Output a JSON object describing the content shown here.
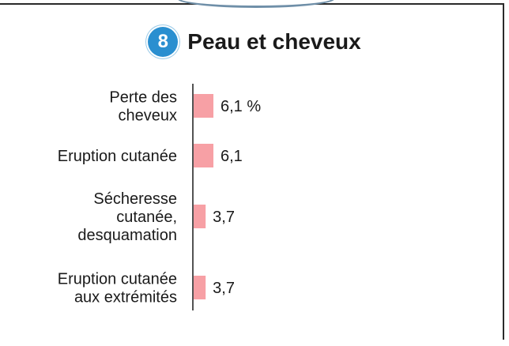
{
  "header": {
    "badge_number": "8",
    "title": "Peau et cheveux"
  },
  "chart_data": {
    "type": "bar",
    "orientation": "horizontal",
    "categories": [
      [
        "Perte des",
        "cheveux"
      ],
      [
        "Eruption cutanée"
      ],
      [
        "Sécheresse",
        "cutanée,",
        "desquamation"
      ],
      [
        "Eruption cutanée",
        "aux extrémités"
      ]
    ],
    "values": [
      6.1,
      6.1,
      3.7,
      3.7
    ],
    "value_labels": [
      "6,1 %",
      "6,1",
      "3,7",
      "3,7"
    ],
    "bar_color": "#f7a0a5",
    "xlim": [
      0,
      100
    ]
  },
  "colors": {
    "badge": "#2a8fd0",
    "axis": "#1a1a1a"
  }
}
